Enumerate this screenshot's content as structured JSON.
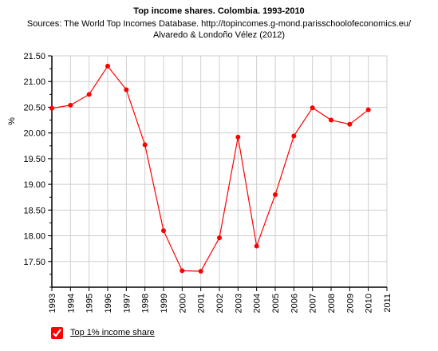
{
  "chart_data": {
    "type": "line",
    "title": "Top income shares. Colombia. 1993-2010",
    "subtitle_lines": [
      "Sources: The World Top Incomes Database. http://topincomes.g-mond.parisschoolofeconomics.eu/",
      "Alvaredo & Londoño Vélez (2012)"
    ],
    "ylabel": "%",
    "xlabel": "",
    "xlim": [
      1993,
      2011
    ],
    "ylim": [
      17.0,
      21.5
    ],
    "x_ticks": [
      "1993",
      "1994",
      "1995",
      "1996",
      "1997",
      "1998",
      "1999",
      "2000",
      "2001",
      "2002",
      "2003",
      "2004",
      "2005",
      "2006",
      "2007",
      "2008",
      "2009",
      "2010",
      "2011"
    ],
    "y_ticks": [
      "17.50",
      "18.00",
      "18.50",
      "19.00",
      "19.50",
      "20.00",
      "20.50",
      "21.00",
      "21.50"
    ],
    "grid": true,
    "legend_position": "bottom-left",
    "series": [
      {
        "name": "Top 1% income share",
        "color": "#ff0000",
        "x": [
          1993,
          1994,
          1995,
          1996,
          1997,
          1998,
          1999,
          2000,
          2001,
          2002,
          2003,
          2004,
          2005,
          2006,
          2007,
          2008,
          2009,
          2010
        ],
        "y": [
          20.48,
          20.54,
          20.75,
          21.3,
          20.84,
          19.77,
          18.1,
          17.32,
          17.31,
          17.96,
          19.92,
          17.8,
          18.8,
          19.94,
          20.49,
          20.25,
          20.17,
          20.45
        ]
      }
    ]
  }
}
